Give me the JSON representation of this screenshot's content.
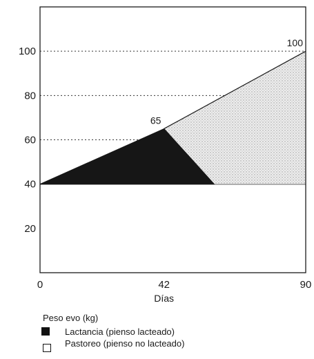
{
  "chart_data": {
    "type": "area",
    "xlabel": "Días",
    "ylabel": "",
    "xlim": [
      0,
      90
    ],
    "ylim": [
      0,
      120
    ],
    "x_ticks": [
      0,
      42,
      90
    ],
    "y_ticks": [
      20,
      40,
      60,
      80,
      100
    ],
    "grid": "horizontal dotted at 60, 80, 100; solid at 40",
    "series": [
      {
        "name": "Lactancia (pienso lacteado)",
        "fill": "dark",
        "points": [
          [
            0,
            40
          ],
          [
            42,
            65
          ],
          [
            59,
            40
          ]
        ]
      },
      {
        "name": "Pastoreo (pienso no lacteado)",
        "fill": "light-stipple",
        "points": [
          [
            42,
            65
          ],
          [
            90,
            100
          ],
          [
            90,
            40
          ],
          [
            59,
            40
          ]
        ]
      }
    ],
    "annotations": [
      {
        "text": "65",
        "x": 42,
        "y": 65
      },
      {
        "text": "100",
        "x": 90,
        "y": 100
      }
    ]
  },
  "legend": {
    "title": "Peso evo (kg)",
    "items": [
      {
        "label": "Lactancia (pienso lacteado)"
      },
      {
        "label": "Pastoreo (pienso no lacteado)"
      }
    ]
  },
  "colors": {
    "dark_fill": "#161616",
    "light_fill": "#e4e4e4",
    "frame": "#1a1a1a"
  }
}
